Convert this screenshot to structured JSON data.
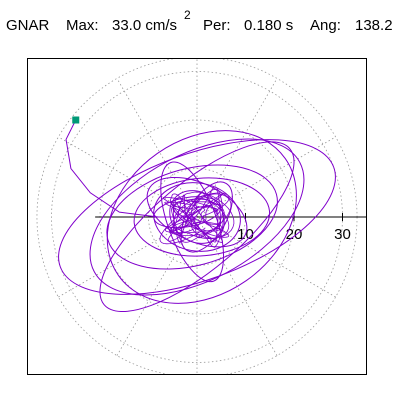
{
  "header": {
    "station": "GNAR",
    "max_label": "Max:",
    "max_value": "33.0 cm/s",
    "max_exponent": "2",
    "period_label": "Per:",
    "period_value": "0.180 s",
    "angle_label": "Ang:",
    "angle_value": "138.2"
  },
  "chart_data": {
    "type": "line",
    "title": "GNAR Max: 33.0 cm/s2 Per: 0.180 s Ang: 138.2",
    "coordinate_system": "polar",
    "radial_axis": {
      "unit": "cm/s2",
      "tick_labels": [
        "10",
        "20",
        "30"
      ],
      "ticks": [
        10,
        20,
        30
      ],
      "range": [
        0,
        33
      ]
    },
    "angular_grid_step_deg": 30,
    "grid": true,
    "series": [
      {
        "color": "#8000cc",
        "marker_end": {
          "x": -25,
          "y": 20,
          "color": "#009977"
        },
        "ellipses": [
          {
            "cx": 0,
            "cy": 0,
            "a": 30,
            "b": 13,
            "angle_deg": -20
          },
          {
            "cx": 0,
            "cy": 0,
            "a": 24,
            "b": 13,
            "angle_deg": -28
          },
          {
            "cx": 1,
            "cy": 0,
            "a": 21,
            "b": 16,
            "angle_deg": -35
          },
          {
            "cx": -1,
            "cy": 0,
            "a": 18,
            "b": 10,
            "angle_deg": -15
          },
          {
            "cx": 0,
            "cy": -2,
            "a": 25,
            "b": 9,
            "angle_deg": -40
          },
          {
            "cx": 1,
            "cy": 0,
            "a": 14,
            "b": 8,
            "angle_deg": -5
          },
          {
            "cx": 0,
            "cy": 1,
            "a": 11,
            "b": 6,
            "angle_deg": 25
          },
          {
            "cx": -1,
            "cy": -1,
            "a": 13,
            "b": 5,
            "angle_deg": 70
          },
          {
            "cx": 0,
            "cy": 0,
            "a": 9,
            "b": 7,
            "angle_deg": 10
          },
          {
            "cx": 2,
            "cy": 0,
            "a": 8,
            "b": 4,
            "angle_deg": -60
          },
          {
            "cx": 0,
            "cy": 0,
            "a": 6,
            "b": 5,
            "angle_deg": 40
          },
          {
            "cx": -2,
            "cy": 1,
            "a": 7,
            "b": 3,
            "angle_deg": -10
          }
        ],
        "tail": [
          [
            -25,
            20
          ],
          [
            -27,
            16
          ],
          [
            -26,
            10
          ],
          [
            -22,
            5
          ],
          [
            -16,
            1
          ],
          [
            -8,
            0
          ],
          [
            0,
            0
          ]
        ]
      }
    ]
  }
}
